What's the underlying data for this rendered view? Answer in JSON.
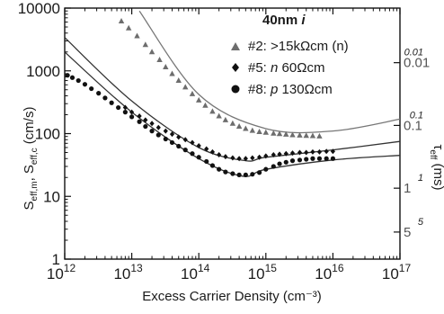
{
  "colors": {
    "dark": "#111111",
    "gray": "#6d6d6d",
    "fit_line": "#444444"
  },
  "chart_data": {
    "type": "scatter",
    "xlabel": "Excess Carrier Density (cm⁻³)",
    "ylabel_main": "S",
    "ylabel_sub1": "eff,m",
    "ylabel_sep": ", S",
    "ylabel_sub2": "eff,c",
    "ylabel_unit": " (cm/s)",
    "y2label": "τ",
    "y2label_sub": "eff",
    "y2label_unit": " (ms)",
    "x_scale": "log",
    "y_scale": "log",
    "xlim": [
      1000000000000.0,
      1e+17
    ],
    "ylim": [
      1,
      10000
    ],
    "x_ticks": [
      {
        "value": 1000000000000.0,
        "base": "10",
        "exp": "12"
      },
      {
        "value": 10000000000000.0,
        "base": "10",
        "exp": "13"
      },
      {
        "value": 100000000000000.0,
        "base": "10",
        "exp": "14"
      },
      {
        "value": 1000000000000000.0,
        "base": "10",
        "exp": "15"
      },
      {
        "value": 1e+16,
        "base": "10",
        "exp": "16"
      },
      {
        "value": 1e+17,
        "base": "10",
        "exp": "17"
      }
    ],
    "y_ticks": [
      {
        "value": 1,
        "label": "1"
      },
      {
        "value": 10,
        "label": "10"
      },
      {
        "value": 100,
        "label": "100"
      },
      {
        "value": 1000,
        "label": "1000"
      },
      {
        "value": 10000,
        "label": "10000"
      }
    ],
    "right_ticks": [
      {
        "value": 0.01,
        "label": "0.01",
        "inner_label": "0.01",
        "at_y": 1350
      },
      {
        "value": 0.1,
        "label": "0.1",
        "inner_label": "0.1",
        "at_y": 135
      },
      {
        "value": 1,
        "label": "1",
        "inner_label": "1",
        "at_y": 13.5
      },
      {
        "value": 5,
        "label": "5",
        "inner_label": "5",
        "at_y": 2.7
      }
    ],
    "legend_title_pre": "40nm ",
    "legend_title_em": "i",
    "series": [
      {
        "name": "#2: >15kΩcm (n)",
        "marker": "triangle",
        "color": "gray",
        "points": [
          [
            7000000000000.0,
            6200
          ],
          [
            9000000000000.0,
            4800
          ],
          [
            12000000000000.0,
            3600
          ],
          [
            16000000000000.0,
            2600
          ],
          [
            20000000000000.0,
            2000
          ],
          [
            26000000000000.0,
            1500
          ],
          [
            32000000000000.0,
            1150
          ],
          [
            40000000000000.0,
            900
          ],
          [
            50000000000000.0,
            700
          ],
          [
            63000000000000.0,
            550
          ],
          [
            80000000000000.0,
            430
          ],
          [
            100000000000000.0,
            340
          ],
          [
            125000000000000.0,
            280
          ],
          [
            160000000000000.0,
            225
          ],
          [
            200000000000000.0,
            190
          ],
          [
            250000000000000.0,
            165
          ],
          [
            320000000000000.0,
            145
          ],
          [
            400000000000000.0,
            130
          ],
          [
            500000000000000.0,
            120
          ],
          [
            630000000000000.0,
            112
          ],
          [
            800000000000000.0,
            107
          ],
          [
            1000000000000000.0,
            104
          ],
          [
            1300000000000000.0,
            101
          ],
          [
            1600000000000000.0,
            99
          ],
          [
            2000000000000000.0,
            97
          ],
          [
            2500000000000000.0,
            95
          ],
          [
            3200000000000000.0,
            94
          ],
          [
            4000000000000000.0,
            93
          ],
          [
            5000000000000000.0,
            92
          ],
          [
            6300000000000000.0,
            91
          ]
        ],
        "fit": [
          [
            13000000000000.0,
            9000
          ],
          [
            100000000000000.0,
            420
          ],
          [
            1000000000000000.0,
            120
          ],
          [
            1e+16,
            110
          ],
          [
            1e+17,
            170
          ]
        ]
      },
      {
        "name_pre": "#5: ",
        "name_em": "n",
        "name_post": " 60Ωcm",
        "marker": "diamond",
        "color": "dark",
        "points": [
          [
            8000000000000.0,
            260
          ],
          [
            10000000000000.0,
            220
          ],
          [
            13000000000000.0,
            190
          ],
          [
            16000000000000.0,
            165
          ],
          [
            20000000000000.0,
            145
          ],
          [
            25000000000000.0,
            125
          ],
          [
            32000000000000.0,
            110
          ],
          [
            40000000000000.0,
            98
          ],
          [
            50000000000000.0,
            88
          ],
          [
            63000000000000.0,
            80
          ],
          [
            80000000000000.0,
            72
          ],
          [
            100000000000000.0,
            64
          ],
          [
            130000000000000.0,
            57
          ],
          [
            160000000000000.0,
            51
          ],
          [
            200000000000000.0,
            46
          ],
          [
            250000000000000.0,
            43
          ],
          [
            320000000000000.0,
            41
          ],
          [
            400000000000000.0,
            40
          ],
          [
            500000000000000.0,
            40
          ],
          [
            630000000000000.0,
            41
          ],
          [
            800000000000000.0,
            42
          ],
          [
            1000000000000000.0,
            44
          ],
          [
            1300000000000000.0,
            46
          ],
          [
            1600000000000000.0,
            47
          ],
          [
            2000000000000000.0,
            48
          ],
          [
            2500000000000000.0,
            49
          ],
          [
            3200000000000000.0,
            50
          ],
          [
            4000000000000000.0,
            50
          ],
          [
            5000000000000000.0,
            51
          ],
          [
            6300000000000000.0,
            51
          ],
          [
            8000000000000000.0,
            52
          ],
          [
            1e+16,
            52
          ]
        ],
        "fit": [
          [
            1000000000000.0,
            3400
          ],
          [
            10000000000000.0,
            330
          ],
          [
            100000000000000.0,
            60
          ],
          [
            500000000000000.0,
            37
          ],
          [
            1000000000000000.0,
            42
          ],
          [
            1e+16,
            55
          ],
          [
            1e+17,
            75
          ]
        ]
      },
      {
        "name_pre": "#8: ",
        "name_em": "p",
        "name_post": " 130Ωcm",
        "marker": "circle",
        "color": "dark",
        "points": [
          [
            1100000000000.0,
            850
          ],
          [
            1300000000000.0,
            780
          ],
          [
            1600000000000.0,
            700
          ],
          [
            2000000000000.0,
            610
          ],
          [
            2500000000000.0,
            520
          ],
          [
            3200000000000.0,
            440
          ],
          [
            4000000000000.0,
            370
          ],
          [
            5000000000000.0,
            310
          ],
          [
            6300000000000.0,
            260
          ],
          [
            8000000000000.0,
            220
          ],
          [
            10000000000000.0,
            185
          ],
          [
            13000000000000.0,
            155
          ],
          [
            16000000000000.0,
            130
          ],
          [
            20000000000000.0,
            110
          ],
          [
            25000000000000.0,
            95
          ],
          [
            32000000000000.0,
            82
          ],
          [
            40000000000000.0,
            72
          ],
          [
            50000000000000.0,
            63
          ],
          [
            63000000000000.0,
            55
          ],
          [
            80000000000000.0,
            48
          ],
          [
            100000000000000.0,
            42
          ],
          [
            130000000000000.0,
            36
          ],
          [
            160000000000000.0,
            31
          ],
          [
            200000000000000.0,
            27
          ],
          [
            250000000000000.0,
            24.5
          ],
          [
            320000000000000.0,
            23
          ],
          [
            400000000000000.0,
            22
          ],
          [
            500000000000000.0,
            22
          ],
          [
            630000000000000.0,
            22.5
          ],
          [
            800000000000000.0,
            24
          ],
          [
            1000000000000000.0,
            27
          ],
          [
            1300000000000000.0,
            30
          ],
          [
            1600000000000000.0,
            33
          ],
          [
            2000000000000000.0,
            35
          ],
          [
            2500000000000000.0,
            37
          ],
          [
            3200000000000000.0,
            38
          ],
          [
            4000000000000000.0,
            39
          ],
          [
            5000000000000000.0,
            40
          ],
          [
            6300000000000000.0,
            40
          ],
          [
            8000000000000000.0,
            40
          ],
          [
            1e+16,
            40
          ]
        ],
        "fit": [
          [
            1000000000000.0,
            2000
          ],
          [
            10000000000000.0,
            220
          ],
          [
            100000000000000.0,
            40
          ],
          [
            450000000000000.0,
            21
          ],
          [
            1000000000000000.0,
            27
          ],
          [
            1e+16,
            38
          ],
          [
            1e+17,
            45
          ]
        ]
      }
    ]
  }
}
